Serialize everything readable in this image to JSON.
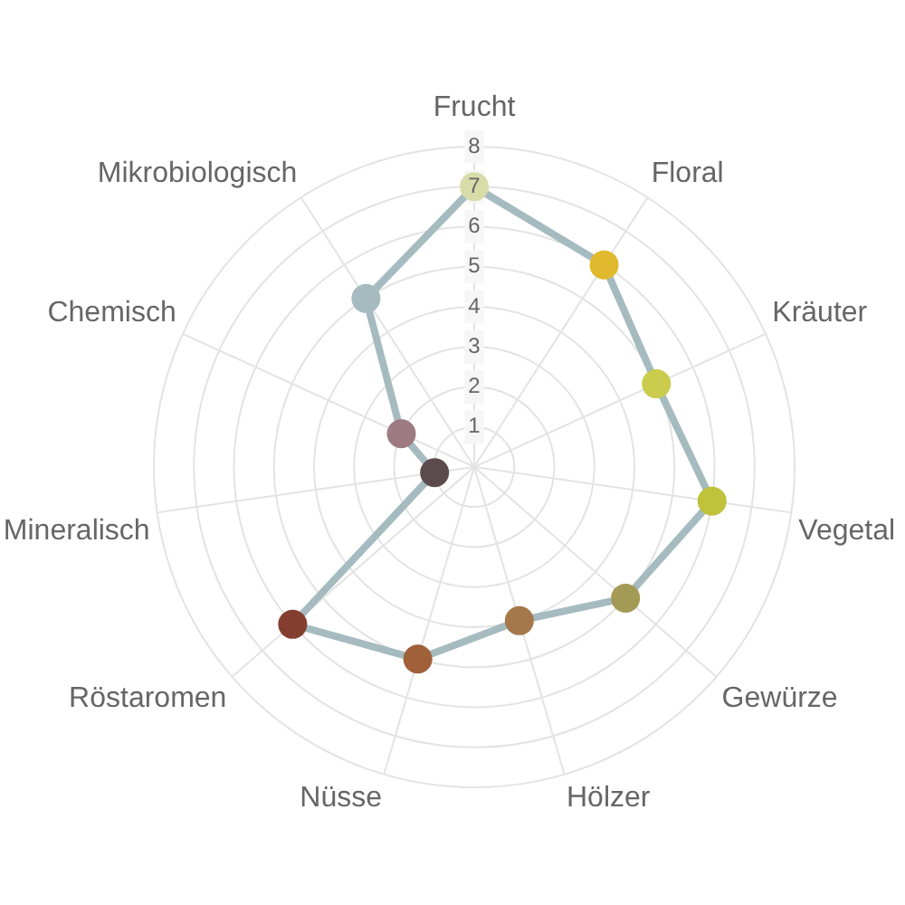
{
  "chart_data": {
    "type": "radar",
    "categories": [
      "Frucht",
      "Floral",
      "Kräuter",
      "Vegetal",
      "Gewürze",
      "Hölzer",
      "Nüsse",
      "Röstaromen",
      "Mineralisch",
      "Chemisch",
      "Mikrobiologisch"
    ],
    "series": [
      {
        "color": "#a5bbbf",
        "colors": [
          "#d8dca8",
          "#e0b92e",
          "#c9cc4c",
          "#bfc23a",
          "#a39a55",
          "#a5774a",
          "#a0603a",
          "#843e30",
          "#5c4b4e",
          "#9e7b82",
          "#a5bbbf"
        ],
        "values": [
          7,
          6,
          5,
          6,
          5,
          4,
          5,
          6,
          1,
          2,
          5
        ]
      }
    ],
    "ylim": [
      0,
      8
    ],
    "yticks": [
      1,
      2,
      3,
      4,
      5,
      6,
      7,
      8
    ],
    "grid": true,
    "marker": "circle"
  }
}
